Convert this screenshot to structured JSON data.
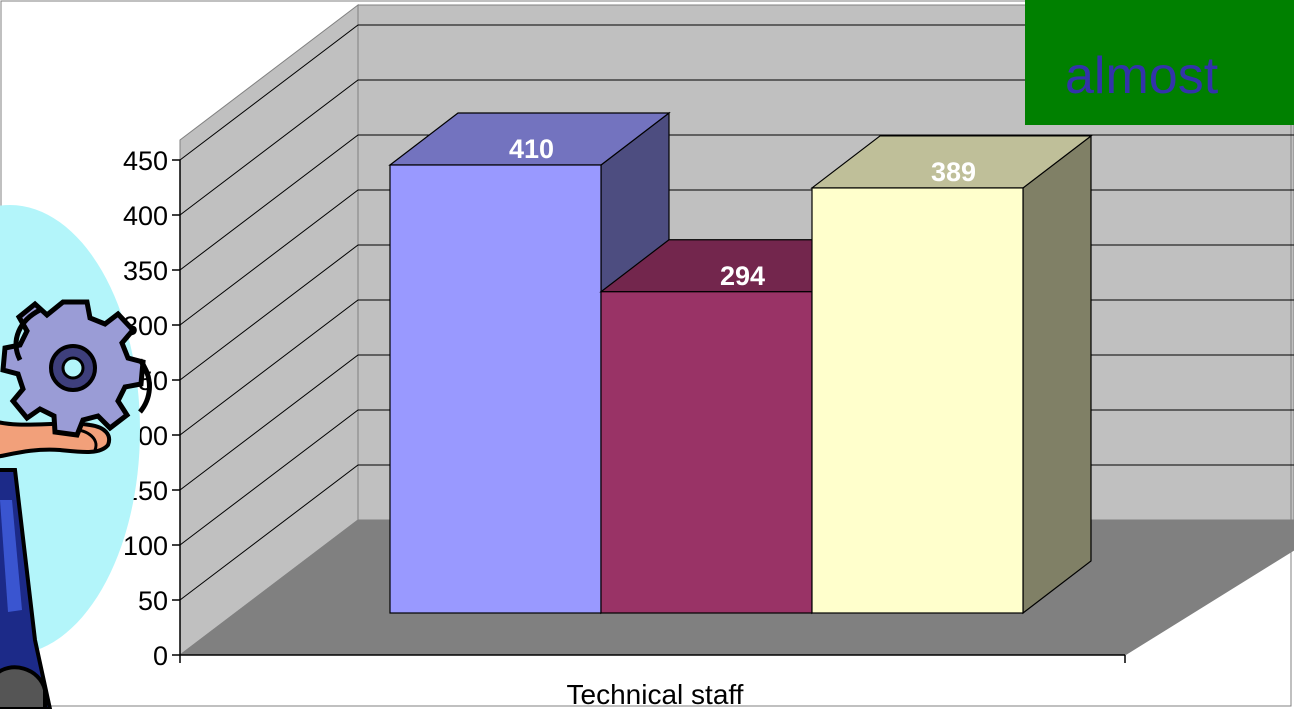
{
  "chart_data": {
    "type": "bar",
    "categories": [
      "Technical staff"
    ],
    "series": [
      {
        "values": [
          410
        ],
        "color": "#9999ff"
      },
      {
        "values": [
          294
        ],
        "color": "#993366"
      },
      {
        "values": [
          389
        ],
        "color": "#ffffcc"
      }
    ],
    "ylim": [
      0,
      450
    ],
    "yticks": [
      "0",
      "50",
      "100",
      "150",
      "200",
      "250",
      "300",
      "350",
      "400",
      "450"
    ],
    "grid": true,
    "projection": "3d",
    "title": "",
    "xlabel": "",
    "ylabel": ""
  },
  "banner": {
    "text": "almost",
    "background": "#008000",
    "text_color": "#3333aa"
  },
  "clipart": {
    "icon": "gear-juggler-icon"
  }
}
